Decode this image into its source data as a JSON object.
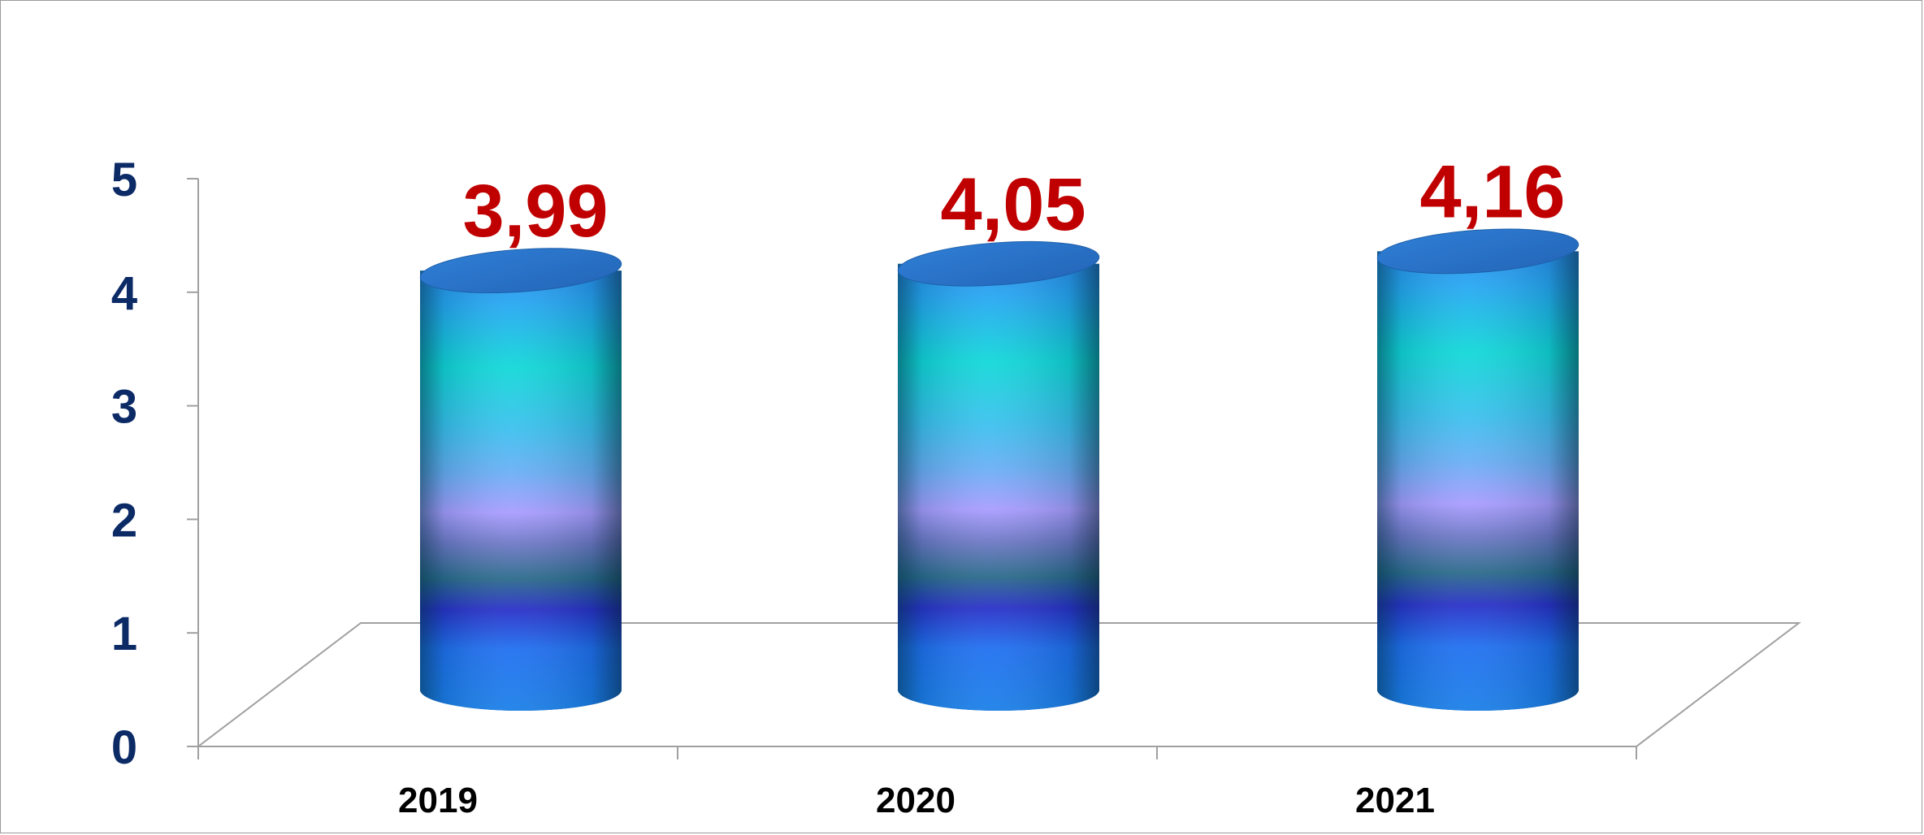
{
  "chart_data": {
    "type": "bar",
    "style": "3d-cylinder",
    "categories": [
      "2019",
      "2020",
      "2021"
    ],
    "values": [
      3.99,
      4.05,
      4.16
    ],
    "data_labels": [
      "3,99",
      "4,05",
      "4,16"
    ],
    "yticks": [
      "0",
      "1",
      "2",
      "3",
      "4",
      "5"
    ],
    "ylim": [
      0,
      5
    ],
    "grid": false,
    "legend": "none",
    "colors": {
      "ytick": "#0b2a66",
      "xtick": "#000000",
      "data_label": "#c00000",
      "axis": "#a0a0a0",
      "cylinder_top": "#2a74c8",
      "cylinder_base": "#2080f0",
      "cylinder_mid_dark": "#2a38c8",
      "cylinder_lilac": "#a69cff",
      "cylinder_teal": "#12d6d6"
    }
  }
}
